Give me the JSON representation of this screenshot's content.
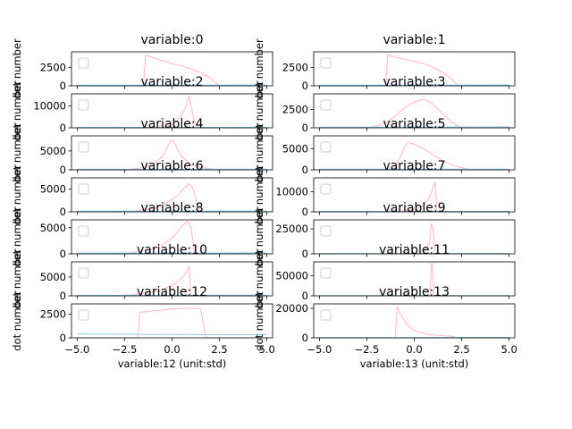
{
  "figure": {
    "background": "#ffffff",
    "colors": {
      "series_a": "#ffb6c1",
      "series_b": "#87ceeb",
      "legend_box": "#cccccc"
    }
  },
  "chart_data": [
    {
      "type": "line",
      "title": "variable:0",
      "ylabel": "dot number",
      "xlabel": "",
      "xlim": [
        -5.3,
        5.3
      ],
      "ylim": [
        0,
        4600
      ],
      "yticks": [
        "0",
        "2500"
      ],
      "ytick_values": [
        0,
        2500
      ],
      "xticks": [
        "",
        "",
        "",
        "",
        ""
      ],
      "legend": "upper-left-empty",
      "series": [
        {
          "x": [
            -5,
            -1.5,
            -1.4,
            -1.0,
            -0.5,
            0,
            0.5,
            1.0,
            1.5,
            2.0,
            2.5,
            5
          ],
          "y": [
            0,
            0,
            4200,
            3800,
            3400,
            3000,
            2700,
            2300,
            1800,
            1100,
            0,
            0
          ]
        },
        {
          "x": [
            -5,
            0,
            5
          ],
          "y": [
            100,
            100,
            120
          ]
        }
      ]
    },
    {
      "type": "line",
      "title": "variable:1",
      "ylabel": "dot number",
      "xlabel": "",
      "xlim": [
        -5.3,
        5.3
      ],
      "ylim": [
        0,
        4600
      ],
      "yticks": [
        "0",
        "2500"
      ],
      "ytick_values": [
        0,
        2500
      ],
      "xticks": [
        "",
        "",
        "",
        "",
        ""
      ],
      "legend": "upper-left-empty",
      "series": [
        {
          "x": [
            -5,
            -1.5,
            -1.4,
            -1.0,
            -0.5,
            0,
            0.5,
            1.0,
            1.5,
            2.0,
            2.3,
            5
          ],
          "y": [
            0,
            0,
            4200,
            3900,
            3600,
            3300,
            3000,
            2500,
            1800,
            900,
            0,
            0
          ]
        },
        {
          "x": [
            -5,
            0,
            5
          ],
          "y": [
            100,
            100,
            120
          ]
        }
      ]
    },
    {
      "type": "line",
      "title": "variable:2",
      "ylabel": "dot number",
      "xlabel": "",
      "xlim": [
        -5.3,
        5.3
      ],
      "ylim": [
        0,
        15500
      ],
      "yticks": [
        "0",
        "10000"
      ],
      "ytick_values": [
        0,
        10000
      ],
      "xticks": [
        "",
        "",
        "",
        "",
        ""
      ],
      "legend": "upper-left-empty",
      "series": [
        {
          "x": [
            -5,
            -1.5,
            -0.5,
            0,
            0.3,
            0.5,
            0.7,
            0.8,
            0.9,
            1.0,
            1.2,
            1.5,
            5
          ],
          "y": [
            0,
            0,
            500,
            1500,
            3500,
            6000,
            9000,
            12000,
            14500,
            10000,
            2000,
            0,
            0
          ]
        },
        {
          "x": [
            -5,
            0,
            5
          ],
          "y": [
            200,
            200,
            250
          ]
        }
      ]
    },
    {
      "type": "line",
      "title": "variable:3",
      "ylabel": "dot number",
      "xlabel": "",
      "xlim": [
        -5.3,
        5.3
      ],
      "ylim": [
        0,
        4600
      ],
      "yticks": [
        "0",
        "2500"
      ],
      "ytick_values": [
        0,
        2500
      ],
      "xticks": [
        "",
        "",
        "",
        "",
        ""
      ],
      "legend": "upper-left-empty",
      "series": [
        {
          "x": [
            -5,
            -2.5,
            -2.0,
            -1.5,
            -1.0,
            -0.5,
            0,
            0.5,
            1.0,
            1.5,
            2.0,
            2.5,
            5
          ],
          "y": [
            0,
            0,
            200,
            700,
            1600,
            2700,
            3500,
            3900,
            3200,
            1900,
            700,
            0,
            0
          ]
        },
        {
          "x": [
            -5,
            0,
            5
          ],
          "y": [
            100,
            100,
            120
          ]
        }
      ]
    },
    {
      "type": "line",
      "title": "variable:4",
      "ylabel": "dot number",
      "xlabel": "",
      "xlim": [
        -5.3,
        5.3
      ],
      "ylim": [
        0,
        9000
      ],
      "yticks": [
        "0",
        "5000"
      ],
      "ytick_values": [
        0,
        5000
      ],
      "xticks": [
        "",
        "",
        "",
        "",
        ""
      ],
      "legend": "upper-left-empty",
      "series": [
        {
          "x": [
            -5,
            -2.5,
            -1.5,
            -1.0,
            -0.5,
            -0.3,
            -0.1,
            0,
            0.2,
            0.5,
            1.0,
            1.5,
            2.5,
            5
          ],
          "y": [
            0,
            0,
            600,
            1500,
            3500,
            5500,
            7500,
            8000,
            6500,
            3500,
            1500,
            600,
            0,
            0
          ]
        },
        {
          "x": [
            -5,
            0,
            5
          ],
          "y": [
            150,
            150,
            180
          ]
        }
      ]
    },
    {
      "type": "line",
      "title": "variable:5",
      "ylabel": "dot number",
      "xlabel": "",
      "xlim": [
        -5.3,
        5.3
      ],
      "ylim": [
        0,
        8000
      ],
      "yticks": [
        "0",
        "5000"
      ],
      "ytick_values": [
        0,
        5000
      ],
      "xticks": [
        "",
        "",
        "",
        "",
        ""
      ],
      "legend": "upper-left-empty",
      "series": [
        {
          "x": [
            -5,
            -1.5,
            -1.0,
            -0.7,
            -0.5,
            -0.3,
            0,
            0.5,
            1.0,
            1.5,
            2.0,
            2.5,
            3.0,
            5
          ],
          "y": [
            0,
            0,
            500,
            3500,
            5500,
            6500,
            6000,
            5000,
            3500,
            2200,
            1200,
            500,
            0,
            0
          ]
        },
        {
          "x": [
            -5,
            0,
            5
          ],
          "y": [
            150,
            150,
            180
          ]
        }
      ]
    },
    {
      "type": "line",
      "title": "variable:6",
      "ylabel": "dot number",
      "xlabel": "",
      "xlim": [
        -5.3,
        5.3
      ],
      "ylim": [
        0,
        7500
      ],
      "yticks": [
        "0",
        "5000"
      ],
      "ytick_values": [
        0,
        5000
      ],
      "xticks": [
        "",
        "",
        "",
        "",
        ""
      ],
      "legend": "upper-left-empty",
      "series": [
        {
          "x": [
            -5,
            -3.0,
            -2.0,
            -1.0,
            -0.5,
            0,
            0.3,
            0.6,
            0.9,
            1.1,
            1.3,
            1.5,
            5
          ],
          "y": [
            0,
            0,
            200,
            700,
            1500,
            2700,
            3600,
            5000,
            6200,
            5200,
            2000,
            0,
            0
          ]
        },
        {
          "x": [
            -5,
            0,
            5
          ],
          "y": [
            150,
            150,
            180
          ]
        }
      ]
    },
    {
      "type": "line",
      "title": "variable:7",
      "ylabel": "dot number",
      "xlabel": "",
      "xlim": [
        -5.3,
        5.3
      ],
      "ylim": [
        0,
        17000
      ],
      "yticks": [
        "0",
        "10000"
      ],
      "ytick_values": [
        0,
        10000
      ],
      "xticks": [
        "",
        "",
        "",
        "",
        ""
      ],
      "legend": "upper-left-empty",
      "series": [
        {
          "x": [
            -5,
            -2.0,
            -1.0,
            0,
            0.5,
            0.8,
            1.0,
            1.1,
            1.2,
            5
          ],
          "y": [
            0,
            0,
            300,
            1000,
            3000,
            7000,
            12000,
            15000,
            0,
            0
          ]
        },
        {
          "x": [
            -5,
            0,
            5
          ],
          "y": [
            200,
            200,
            250
          ]
        }
      ]
    },
    {
      "type": "line",
      "title": "variable:8",
      "ylabel": "dot number",
      "xlabel": "",
      "xlim": [
        -5.3,
        5.3
      ],
      "ylim": [
        0,
        6500
      ],
      "yticks": [
        "0",
        "5000"
      ],
      "ytick_values": [
        0,
        5000
      ],
      "xticks": [
        "",
        "",
        "",
        "",
        ""
      ],
      "legend": "upper-left-empty",
      "series": [
        {
          "x": [
            -5,
            -3.0,
            -2.0,
            -1.0,
            -0.5,
            0,
            0.3,
            0.6,
            0.8,
            1.0,
            1.2,
            5
          ],
          "y": [
            0,
            0,
            300,
            1000,
            1800,
            3000,
            4200,
            5600,
            6200,
            5000,
            0,
            0
          ]
        },
        {
          "x": [
            -5,
            0,
            5
          ],
          "y": [
            150,
            150,
            180
          ]
        }
      ]
    },
    {
      "type": "line",
      "title": "variable:9",
      "ylabel": "dot number",
      "xlabel": "",
      "xlim": [
        -5.3,
        5.3
      ],
      "ylim": [
        0,
        34000
      ],
      "yticks": [
        "0",
        "25000"
      ],
      "ytick_values": [
        0,
        25000
      ],
      "xticks": [
        "",
        "",
        "",
        "",
        ""
      ],
      "legend": "upper-left-empty",
      "series": [
        {
          "x": [
            -5,
            0,
            0.5,
            0.8,
            0.9,
            1.0,
            1.1,
            5
          ],
          "y": [
            0,
            0,
            2000,
            10000,
            30000,
            25000,
            0,
            0
          ]
        },
        {
          "x": [
            -5,
            0,
            5
          ],
          "y": [
            300,
            300,
            350
          ]
        }
      ]
    },
    {
      "type": "line",
      "title": "variable:10",
      "ylabel": "dot number",
      "xlabel": "",
      "xlim": [
        -5.3,
        5.3
      ],
      "ylim": [
        0,
        9000
      ],
      "yticks": [
        "0",
        "5000"
      ],
      "ytick_values": [
        0,
        5000
      ],
      "xticks": [
        "",
        "",
        "",
        "",
        ""
      ],
      "legend": "upper-left-empty",
      "series": [
        {
          "x": [
            -5,
            -3.0,
            -2.0,
            -1.0,
            -0.5,
            0,
            0.3,
            0.6,
            0.8,
            0.9,
            1.0,
            5
          ],
          "y": [
            0,
            0,
            300,
            900,
            1600,
            2800,
            3800,
            5200,
            6500,
            7500,
            0,
            0
          ]
        },
        {
          "x": [
            -5,
            0,
            5
          ],
          "y": [
            150,
            150,
            180
          ]
        }
      ]
    },
    {
      "type": "line",
      "title": "variable:11",
      "ylabel": "dot number",
      "xlabel": "",
      "xlim": [
        -5.3,
        5.3
      ],
      "ylim": [
        0,
        85000
      ],
      "yticks": [
        "0",
        "50000"
      ],
      "ytick_values": [
        0,
        50000
      ],
      "xticks": [
        "",
        "",
        "",
        "",
        ""
      ],
      "legend": "upper-left-empty",
      "series": [
        {
          "x": [
            -5,
            0.8,
            0.85,
            0.9,
            0.95,
            1.05,
            5
          ],
          "y": [
            0,
            0,
            5000,
            80000,
            80000,
            0,
            0
          ]
        },
        {
          "x": [
            -5,
            0,
            5
          ],
          "y": [
            500,
            500,
            600
          ]
        }
      ]
    },
    {
      "type": "line",
      "title": "variable:12",
      "ylabel": "dot number",
      "xlabel": "variable:12 (unit:std)",
      "xlim": [
        -5.3,
        5.3
      ],
      "ylim": [
        0,
        3600
      ],
      "yticks": [
        "0",
        "2500"
      ],
      "ytick_values": [
        0,
        2500
      ],
      "xticks": [
        "−5.0",
        "−2.5",
        "0.0",
        "2.5",
        "5.0"
      ],
      "xtick_values": [
        -5,
        -2.5,
        0,
        2.5,
        5
      ],
      "legend": "upper-left-empty",
      "series": [
        {
          "x": [
            -5,
            -1.8,
            -1.7,
            -1.0,
            -0.5,
            0,
            0.5,
            1.0,
            1.5,
            1.8,
            5
          ],
          "y": [
            0,
            0,
            2700,
            2850,
            2950,
            3050,
            3100,
            3150,
            3100,
            0,
            0
          ]
        },
        {
          "x": [
            -5,
            -2.0,
            -1.0,
            0,
            1.0,
            2.0,
            5
          ],
          "y": [
            400,
            380,
            360,
            350,
            340,
            330,
            320
          ]
        }
      ]
    },
    {
      "type": "line",
      "title": "variable:13",
      "ylabel": "dot number",
      "xlabel": "variable:13 (unit:std)",
      "xlim": [
        -5.3,
        5.3
      ],
      "ylim": [
        0,
        23000
      ],
      "yticks": [
        "0",
        "20000"
      ],
      "ytick_values": [
        0,
        20000
      ],
      "xticks": [
        "−5.0",
        "−2.5",
        "0.0",
        "2.5",
        "5.0"
      ],
      "xtick_values": [
        -5,
        -2.5,
        0,
        2.5,
        5
      ],
      "legend": "upper-left-empty",
      "series": [
        {
          "x": [
            -5,
            -1.0,
            -0.9,
            -0.6,
            -0.3,
            0,
            0.5,
            1.0,
            1.5,
            2.0,
            2.3,
            5
          ],
          "y": [
            0,
            0,
            21000,
            13000,
            8000,
            5000,
            3000,
            2000,
            1500,
            1000,
            0,
            0
          ]
        },
        {
          "x": [
            -5,
            0,
            2.0,
            5
          ],
          "y": [
            200,
            200,
            300,
            300
          ]
        }
      ]
    }
  ]
}
